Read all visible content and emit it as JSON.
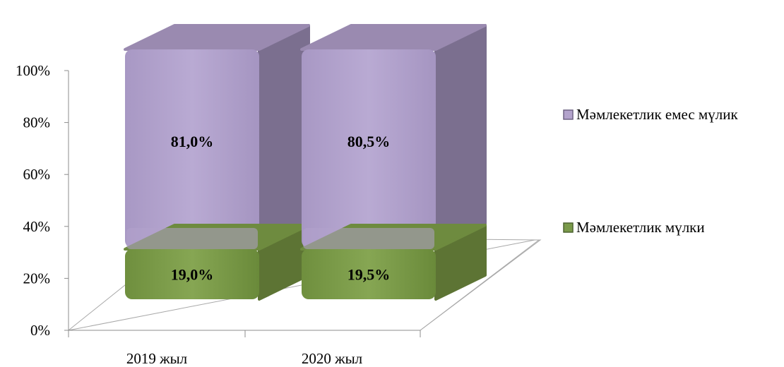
{
  "chart_data": {
    "type": "bar",
    "stacked": true,
    "percent": true,
    "categories": [
      "2019 жыл",
      "2020 жыл"
    ],
    "series": [
      {
        "name": "Мәмлекетлик мүлки",
        "values": [
          19.0,
          19.5
        ],
        "labels": [
          "19,0%",
          "19,5%"
        ],
        "color": "#7a9a4a"
      },
      {
        "name": "Мәмлекетлик емес мүлик",
        "values": [
          81.0,
          80.5
        ],
        "labels": [
          "81,0%",
          "80,5%"
        ],
        "color": "#b3a3cc"
      }
    ],
    "yticks": [
      "0%",
      "20%",
      "40%",
      "60%",
      "80%",
      "100%"
    ],
    "ylim": [
      0,
      100
    ],
    "legend": "right",
    "legend_order": [
      1,
      0
    ],
    "grid": false
  }
}
